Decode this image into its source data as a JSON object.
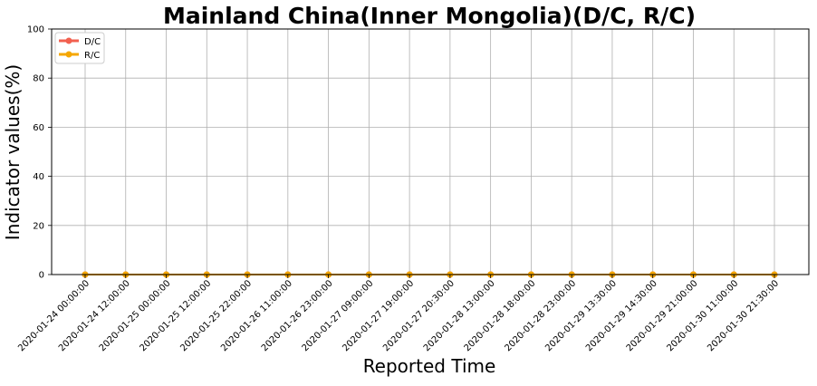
{
  "chart_data": {
    "type": "line",
    "title": "Mainland China(Inner Mongolia)(D/C, R/C)",
    "xlabel": "Reported Time",
    "ylabel": "Indicator values(%)",
    "categories": [
      "2020-01-24 00:00:00",
      "2020-01-24 12:00:00",
      "2020-01-25 00:00:00",
      "2020-01-25 12:00:00",
      "2020-01-25 22:00:00",
      "2020-01-26 11:00:00",
      "2020-01-26 23:00:00",
      "2020-01-27 09:00:00",
      "2020-01-27 19:00:00",
      "2020-01-27 20:30:00",
      "2020-01-28 13:00:00",
      "2020-01-28 18:00:00",
      "2020-01-28 23:00:00",
      "2020-01-29 13:30:00",
      "2020-01-29 14:30:00",
      "2020-01-29 21:00:00",
      "2020-01-30 11:00:00",
      "2020-01-30 21:30:00"
    ],
    "series": [
      {
        "name": "D/C",
        "color": "#f2604f",
        "values": [
          0,
          0,
          0,
          0,
          0,
          0,
          0,
          0,
          0,
          0,
          0,
          0,
          0,
          0,
          0,
          0,
          0,
          0
        ]
      },
      {
        "name": "R/C",
        "color": "#f5a700",
        "values": [
          0,
          0,
          0,
          0,
          0,
          0,
          0,
          0,
          0,
          0,
          0,
          0,
          0,
          0,
          0,
          0,
          0,
          0
        ]
      }
    ],
    "ylim": [
      0,
      100
    ],
    "yticks": [
      0,
      20,
      40,
      60,
      80,
      100
    ],
    "grid": true,
    "legend": "top-left"
  }
}
